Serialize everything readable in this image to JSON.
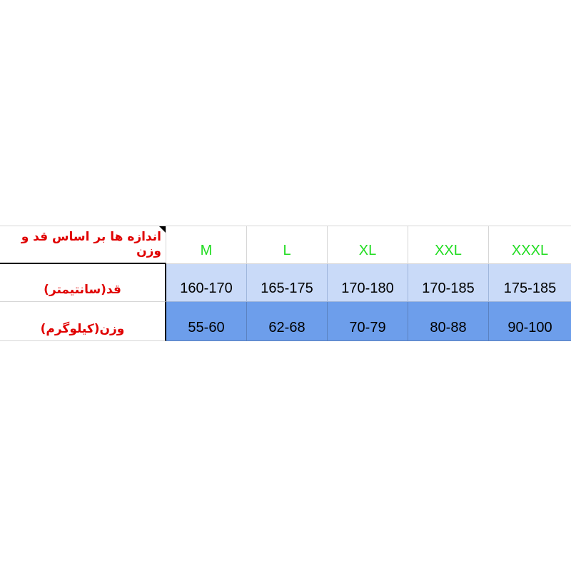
{
  "table": {
    "header_label": "اندازه ها بر اساس قد و وزن",
    "sizes": [
      "M",
      "L",
      "XL",
      "XXL",
      "XXXL"
    ],
    "rows": [
      {
        "label": "قد(سانتیمتر)",
        "values": [
          "160-170",
          "165-175",
          "170-180",
          "170-185",
          "175-185"
        ]
      },
      {
        "label": "وزن(کیلوگرم)",
        "values": [
          "55-60",
          "62-68",
          "70-79",
          "80-88",
          "90-100"
        ]
      }
    ]
  },
  "colors": {
    "label": "#e00000",
    "size": "#1fdc1f",
    "row_light": "#c9daf8",
    "row_dark": "#6d9eeb"
  }
}
